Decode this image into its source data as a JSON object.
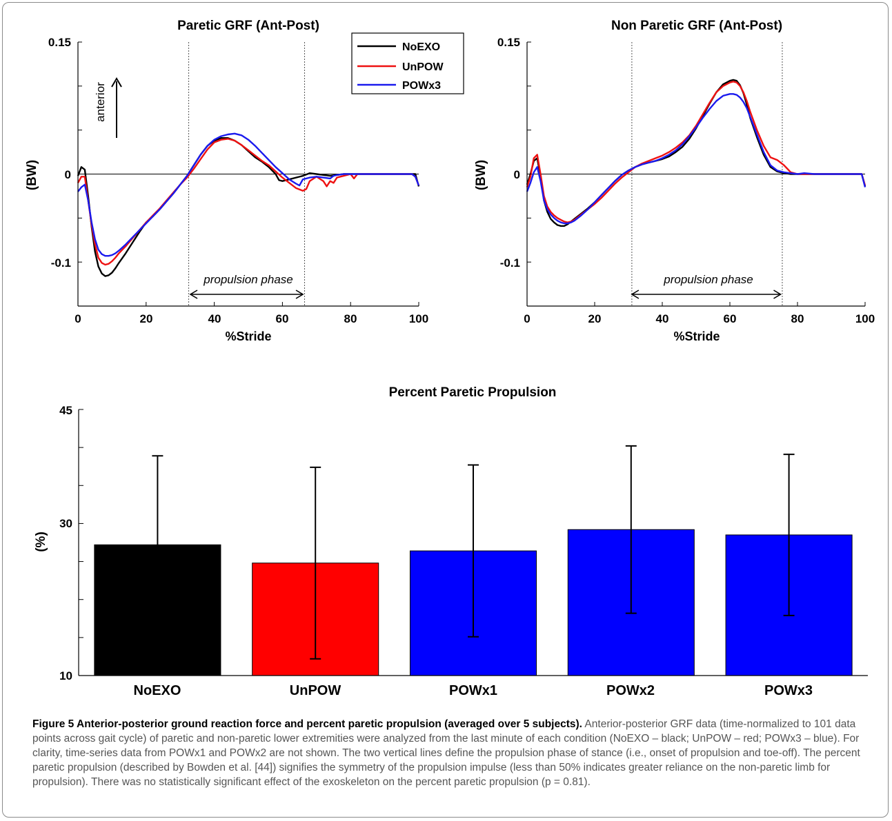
{
  "colors": {
    "noexo": "#000000",
    "unpow": "#ee1111",
    "powx3": "#1a1aee",
    "bar_noexo": "#000000",
    "bar_unpow": "#ff0000",
    "bar_pow": "#0000ff"
  },
  "annotations": {
    "propulsion_phase": "propulsion phase",
    "anterior": "anterior"
  },
  "chart_data": [
    {
      "type": "line",
      "title": "Paretic GRF (Ant-Post)",
      "xlabel": "%Stride",
      "ylabel": "(BW)",
      "xlim": [
        0,
        100
      ],
      "ylim": [
        -0.15,
        0.15
      ],
      "xticks": [
        "0",
        "20",
        "40",
        "60",
        "80",
        "100"
      ],
      "yticks": [
        "0.15",
        "0",
        "-0.1"
      ],
      "yminor": [
        -0.15,
        -0.1,
        -0.05,
        0,
        0.05,
        0.1,
        0.15
      ],
      "vlines": [
        32.5,
        66.5
      ],
      "phase_arrow": [
        33,
        66
      ],
      "legend": [
        "NoEXO",
        "UnPOW",
        "POWx3"
      ],
      "legend_position": "top-right",
      "series": [
        {
          "name": "NoEXO",
          "x": [
            0,
            1,
            2,
            3,
            4,
            5,
            6,
            7,
            8,
            9,
            10,
            11,
            12,
            14,
            16,
            18,
            20,
            22,
            24,
            26,
            28,
            30,
            32,
            34,
            36,
            38,
            40,
            42,
            44,
            46,
            48,
            50,
            52,
            54,
            56,
            58,
            59,
            60,
            62,
            64,
            66,
            68,
            70,
            72,
            74,
            76,
            78,
            80,
            82,
            84,
            86,
            88,
            90,
            92,
            94,
            96,
            98,
            99,
            100
          ],
          "y": [
            -0.002,
            0.008,
            0.005,
            -0.025,
            -0.06,
            -0.088,
            -0.105,
            -0.113,
            -0.116,
            -0.115,
            -0.112,
            -0.107,
            -0.101,
            -0.09,
            -0.078,
            -0.066,
            -0.055,
            -0.048,
            -0.04,
            -0.031,
            -0.022,
            -0.012,
            -0.002,
            0.01,
            0.022,
            0.032,
            0.038,
            0.041,
            0.041,
            0.038,
            0.033,
            0.026,
            0.019,
            0.014,
            0.008,
            0.0,
            -0.007,
            -0.008,
            -0.006,
            -0.004,
            -0.002,
            0.001,
            0.0,
            -0.001,
            -0.002,
            -0.001,
            0.0,
            0.0,
            0.0,
            0.0,
            0.0,
            0.0,
            0.0,
            0.0,
            0.0,
            0.0,
            0.0,
            0.0,
            -0.014
          ]
        },
        {
          "name": "UnPOW",
          "x": [
            0,
            1,
            2,
            3,
            4,
            5,
            6,
            7,
            8,
            9,
            10,
            11,
            12,
            14,
            16,
            18,
            20,
            22,
            24,
            26,
            28,
            30,
            32,
            34,
            36,
            38,
            40,
            42,
            44,
            46,
            48,
            50,
            52,
            54,
            56,
            58,
            60,
            62,
            64,
            66,
            67,
            68,
            70,
            72,
            73,
            74,
            75,
            76,
            78,
            80,
            81,
            82,
            84,
            86,
            88,
            90,
            92,
            94,
            96,
            98,
            99,
            100
          ],
          "y": [
            -0.01,
            -0.003,
            -0.003,
            -0.03,
            -0.058,
            -0.08,
            -0.095,
            -0.101,
            -0.103,
            -0.102,
            -0.099,
            -0.095,
            -0.09,
            -0.082,
            -0.073,
            -0.064,
            -0.055,
            -0.047,
            -0.039,
            -0.03,
            -0.021,
            -0.012,
            -0.004,
            0.006,
            0.017,
            0.028,
            0.036,
            0.039,
            0.04,
            0.038,
            0.033,
            0.027,
            0.021,
            0.015,
            0.01,
            0.003,
            -0.004,
            -0.01,
            -0.016,
            -0.019,
            -0.017,
            -0.008,
            -0.003,
            -0.008,
            -0.014,
            -0.008,
            -0.01,
            -0.004,
            -0.002,
            0.0,
            -0.005,
            0.0,
            0.0,
            0.0,
            0.0,
            0.0,
            0.0,
            0.0,
            0.0,
            0.0,
            -0.003,
            -0.013
          ]
        },
        {
          "name": "POWx3",
          "x": [
            0,
            1,
            2,
            3,
            4,
            5,
            6,
            7,
            8,
            9,
            10,
            11,
            12,
            14,
            16,
            18,
            20,
            22,
            24,
            26,
            28,
            30,
            32,
            34,
            36,
            38,
            40,
            42,
            44,
            46,
            48,
            50,
            52,
            54,
            56,
            58,
            60,
            62,
            64,
            65,
            66,
            68,
            70,
            72,
            74,
            75,
            76,
            78,
            80,
            82,
            84,
            86,
            88,
            90,
            92,
            94,
            96,
            98,
            99,
            100
          ],
          "y": [
            -0.02,
            -0.015,
            -0.012,
            -0.03,
            -0.055,
            -0.074,
            -0.086,
            -0.091,
            -0.093,
            -0.093,
            -0.092,
            -0.09,
            -0.087,
            -0.08,
            -0.072,
            -0.064,
            -0.056,
            -0.048,
            -0.04,
            -0.031,
            -0.022,
            -0.012,
            -0.002,
            0.01,
            0.022,
            0.032,
            0.039,
            0.043,
            0.045,
            0.046,
            0.044,
            0.039,
            0.032,
            0.024,
            0.016,
            0.008,
            0.001,
            -0.006,
            -0.011,
            -0.013,
            -0.006,
            -0.004,
            -0.003,
            -0.004,
            -0.005,
            -0.002,
            -0.001,
            0.0,
            0.0,
            0.0,
            0.0,
            0.0,
            0.0,
            0.0,
            0.0,
            0.0,
            0.0,
            0.0,
            -0.003,
            -0.013
          ]
        }
      ]
    },
    {
      "type": "line",
      "title": "Non Paretic GRF (Ant-Post)",
      "xlabel": "%Stride",
      "ylabel": "(BW)",
      "xlim": [
        0,
        100
      ],
      "ylim": [
        -0.15,
        0.15
      ],
      "xticks": [
        "0",
        "20",
        "40",
        "60",
        "80",
        "100"
      ],
      "yticks": [
        "0.15",
        "0",
        "-0.1"
      ],
      "yminor": [
        -0.15,
        -0.1,
        -0.05,
        0,
        0.05,
        0.1,
        0.15
      ],
      "vlines": [
        31,
        75.5
      ],
      "phase_arrow": [
        31,
        75
      ],
      "series": [
        {
          "name": "NoEXO",
          "x": [
            0,
            1,
            2,
            3,
            4,
            5,
            6,
            7,
            8,
            9,
            10,
            11,
            12,
            13,
            14,
            16,
            18,
            20,
            22,
            24,
            26,
            28,
            30,
            32,
            34,
            36,
            38,
            40,
            42,
            44,
            46,
            48,
            50,
            52,
            54,
            56,
            58,
            60,
            61,
            62,
            63,
            64,
            65,
            66,
            68,
            70,
            72,
            74,
            76,
            78,
            80,
            85,
            90,
            95,
            99,
            100
          ],
          "y": [
            -0.012,
            0.0,
            0.015,
            0.018,
            -0.003,
            -0.03,
            -0.043,
            -0.051,
            -0.055,
            -0.058,
            -0.059,
            -0.059,
            -0.057,
            -0.054,
            -0.051,
            -0.045,
            -0.039,
            -0.032,
            -0.024,
            -0.016,
            -0.008,
            -0.001,
            0.004,
            0.008,
            0.011,
            0.013,
            0.015,
            0.017,
            0.02,
            0.025,
            0.031,
            0.04,
            0.052,
            0.066,
            0.08,
            0.093,
            0.102,
            0.106,
            0.107,
            0.106,
            0.101,
            0.092,
            0.079,
            0.064,
            0.042,
            0.022,
            0.008,
            0.003,
            0.001,
            0.0,
            0.0,
            0.0,
            0.0,
            0.0,
            0.0,
            -0.014
          ]
        },
        {
          "name": "UnPOW",
          "x": [
            0,
            1,
            2,
            3,
            4,
            5,
            6,
            7,
            8,
            9,
            10,
            11,
            12,
            13,
            14,
            16,
            18,
            20,
            22,
            24,
            26,
            28,
            30,
            32,
            34,
            36,
            38,
            40,
            42,
            44,
            46,
            48,
            50,
            52,
            54,
            56,
            58,
            60,
            61,
            62,
            63,
            64,
            65,
            66,
            68,
            70,
            72,
            74,
            76,
            78,
            80,
            85,
            90,
            95,
            99,
            100
          ],
          "y": [
            -0.015,
            -0.003,
            0.018,
            0.022,
            0.0,
            -0.025,
            -0.037,
            -0.043,
            -0.047,
            -0.05,
            -0.052,
            -0.054,
            -0.055,
            -0.054,
            -0.052,
            -0.046,
            -0.04,
            -0.034,
            -0.027,
            -0.019,
            -0.011,
            -0.004,
            0.002,
            0.008,
            0.012,
            0.015,
            0.018,
            0.021,
            0.025,
            0.03,
            0.036,
            0.044,
            0.055,
            0.068,
            0.081,
            0.093,
            0.1,
            0.104,
            0.105,
            0.104,
            0.1,
            0.093,
            0.083,
            0.071,
            0.05,
            0.032,
            0.019,
            0.016,
            0.01,
            0.002,
            0.0,
            0.0,
            0.0,
            0.0,
            0.0,
            -0.013
          ]
        },
        {
          "name": "POWx3",
          "x": [
            0,
            1,
            2,
            3,
            4,
            5,
            6,
            7,
            8,
            9,
            10,
            11,
            12,
            13,
            14,
            16,
            18,
            20,
            22,
            24,
            26,
            28,
            30,
            32,
            34,
            36,
            38,
            40,
            42,
            44,
            46,
            48,
            50,
            52,
            54,
            56,
            58,
            60,
            61,
            62,
            63,
            64,
            65,
            66,
            68,
            70,
            72,
            74,
            76,
            78,
            80,
            82,
            85,
            90,
            95,
            99,
            100
          ],
          "y": [
            -0.02,
            -0.01,
            0.002,
            0.008,
            -0.008,
            -0.03,
            -0.04,
            -0.046,
            -0.05,
            -0.053,
            -0.055,
            -0.056,
            -0.056,
            -0.055,
            -0.053,
            -0.047,
            -0.04,
            -0.032,
            -0.024,
            -0.016,
            -0.008,
            -0.001,
            0.004,
            0.008,
            0.011,
            0.013,
            0.015,
            0.018,
            0.022,
            0.027,
            0.034,
            0.043,
            0.053,
            0.064,
            0.074,
            0.083,
            0.089,
            0.091,
            0.091,
            0.09,
            0.087,
            0.082,
            0.075,
            0.065,
            0.045,
            0.025,
            0.01,
            0.004,
            0.002,
            0.001,
            0.0,
            0.001,
            0.0,
            0.0,
            0.0,
            0.0,
            -0.015
          ]
        }
      ]
    },
    {
      "type": "bar",
      "title": "Percent Paretic Propulsion",
      "ylabel": "(%)",
      "ylim": [
        10,
        45
      ],
      "yticks": [
        "45",
        "30",
        "10"
      ],
      "yminor": [
        10,
        15,
        20,
        25,
        30,
        35,
        40,
        45
      ],
      "categories": [
        "NoEXO",
        "UnPOW",
        "POWx1",
        "POWx2",
        "POWx3"
      ],
      "values": [
        27.2,
        24.8,
        26.4,
        29.2,
        28.5
      ],
      "errors": [
        11.7,
        12.6,
        11.3,
        11.0,
        10.6
      ]
    }
  ],
  "caption": {
    "bold": "Figure 5 Anterior-posterior ground reaction force and percent paretic propulsion (averaged over 5 subjects).",
    "text": " Anterior-posterior GRF data (time-normalized to 101 data points across gait cycle) of paretic and non-paretic lower extremities were analyzed from the last minute of each condition (NoEXO – black; UnPOW – red; POWx3 – blue). For clarity, time-series data from POWx1 and POWx2 are not shown. The two vertical lines define the propulsion phase of stance (i.e., onset of propulsion and toe-off). The percent paretic propulsion (described by Bowden et al. [44]) signifies the symmetry of the propulsion impulse (less than 50% indicates greater reliance on the non-paretic limb for propulsion). There was no statistically significant effect of the exoskeleton on the percent paretic propulsion (p = 0.81)."
  }
}
